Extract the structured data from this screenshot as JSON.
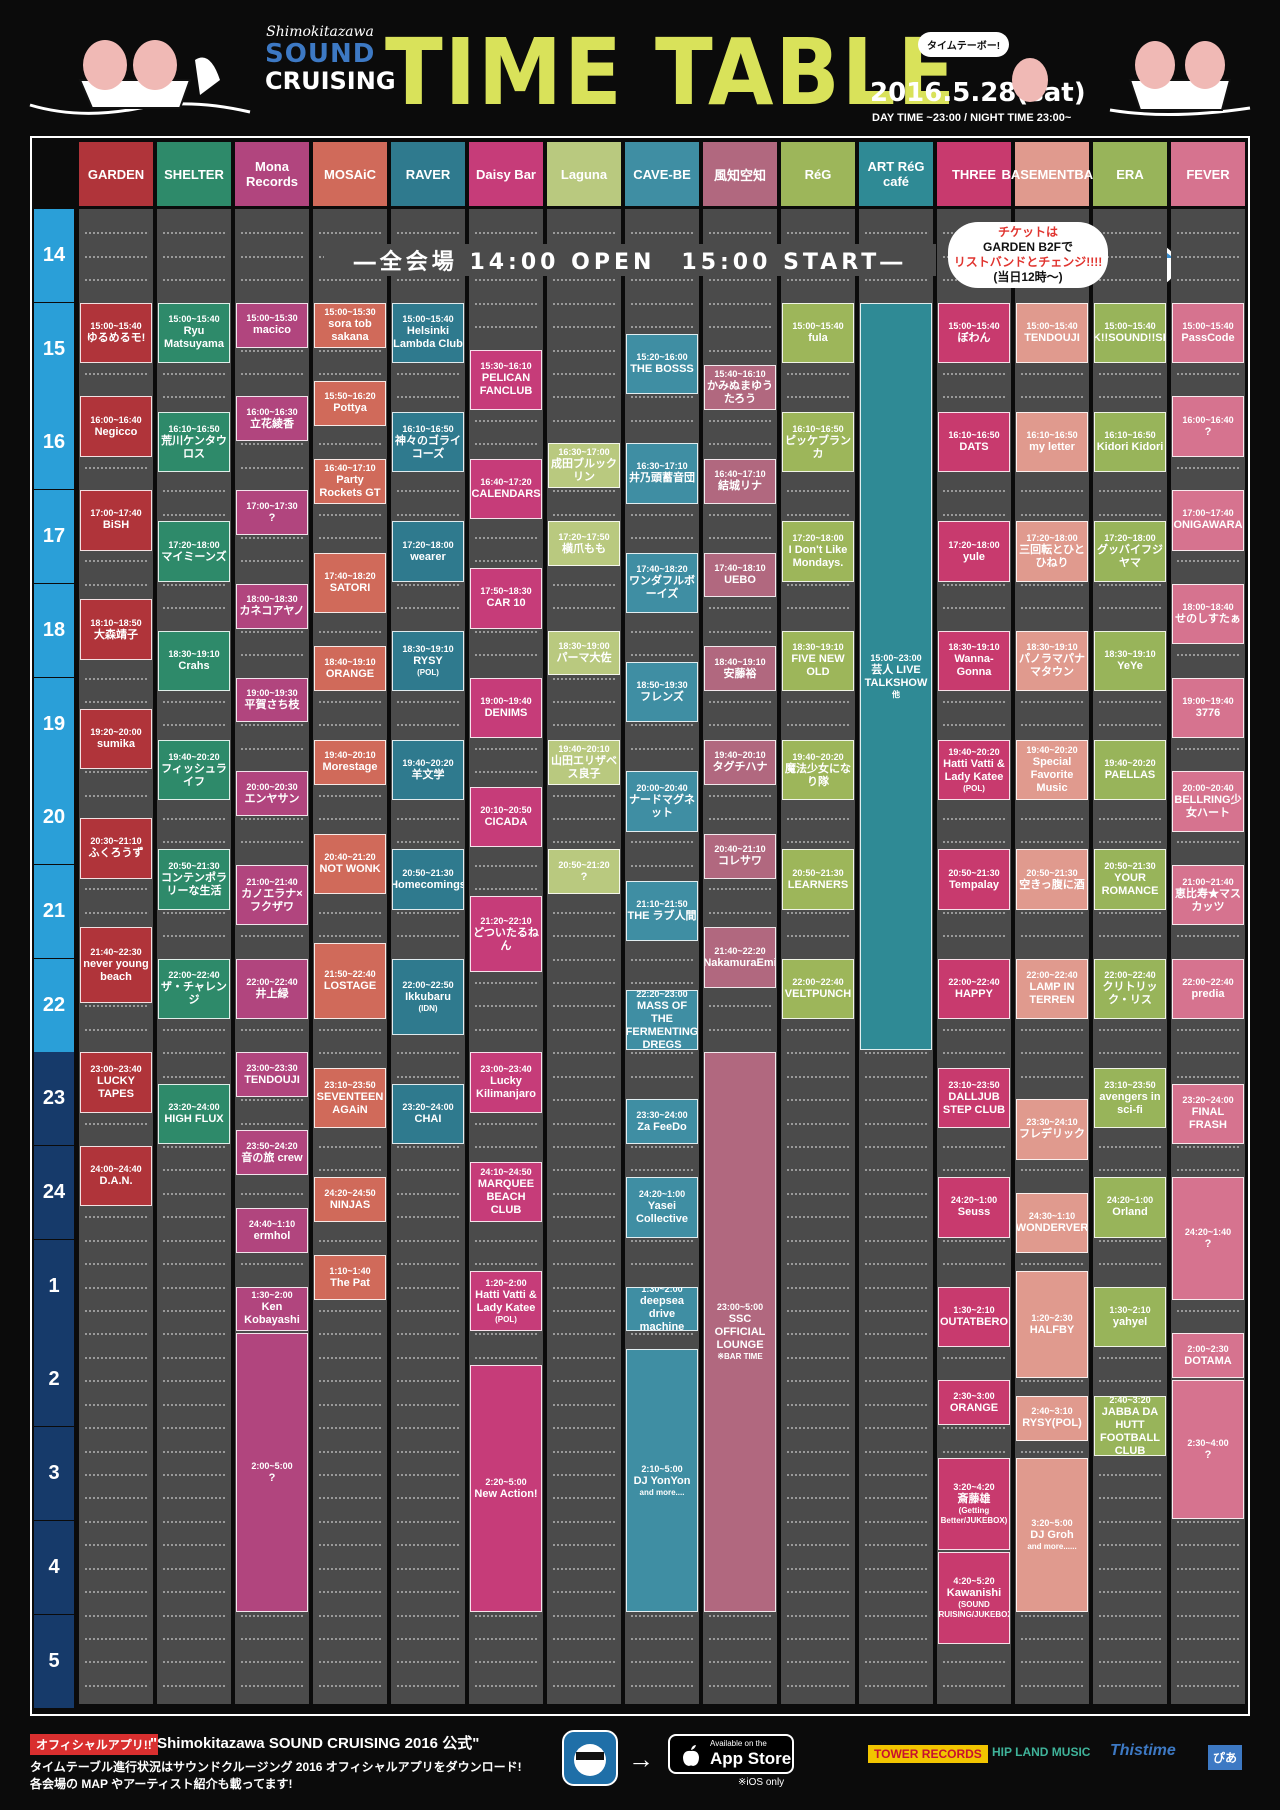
{
  "header": {
    "logo_top": "Shimokitazawa",
    "logo_mid": "SOUND",
    "logo_bot": "CRUISING",
    "title": "TIME TABLE",
    "bubble": "タイムテーボー!",
    "date": "2016.5.28(sat)",
    "hours": "DAY TIME ~23:00 / NIGHT TIME 23:00~"
  },
  "venues": [
    {
      "name": "GARDEN",
      "color": "#b0343a"
    },
    {
      "name": "SHELTER",
      "color": "#2e8a6a"
    },
    {
      "name": "Mona Records",
      "color": "#b1457e"
    },
    {
      "name": "MOSAiC",
      "color": "#d06a5a"
    },
    {
      "name": "RAVER",
      "color": "#2f7a8e"
    },
    {
      "name": "Daisy Bar",
      "color": "#c63c79"
    },
    {
      "name": "Laguna",
      "color": "#b9c97f"
    },
    {
      "name": "CAVE-BE",
      "color": "#3f8ea3"
    },
    {
      "name": "風知空知",
      "color": "#b1687f"
    },
    {
      "name": "RéG",
      "color": "#9db65a"
    },
    {
      "name": "ART RéG café",
      "color": "#2f8a95"
    },
    {
      "name": "THREE",
      "color": "#c83a6e"
    },
    {
      "name": "BASEMENTBAR",
      "color": "#e09a8e"
    },
    {
      "name": "ERA",
      "color": "#98b45a"
    },
    {
      "name": "FEVER",
      "color": "#d6738f"
    }
  ],
  "hours": [
    "14",
    "15",
    "16",
    "17",
    "18",
    "19",
    "20",
    "21",
    "22",
    "23",
    "24",
    "1",
    "2",
    "3",
    "4",
    "5"
  ],
  "open_banner": "―全会場 14:00 OPEN　15:00 START―",
  "ticket": {
    "line1": "チケットは",
    "line2": "GARDEN B2Fで",
    "line3": "リストバンドとチェンジ!!!!",
    "line4": "(当日12時〜)"
  },
  "slots": [
    {
      "v": 0,
      "s": "15:00",
      "e": "15:40",
      "time": "15:00~15:40",
      "name": "ゆるめるモ!"
    },
    {
      "v": 0,
      "s": "16:00",
      "e": "16:40",
      "time": "16:00~16:40",
      "name": "Negicco"
    },
    {
      "v": 0,
      "s": "17:00",
      "e": "17:40",
      "time": "17:00~17:40",
      "name": "BiSH"
    },
    {
      "v": 0,
      "s": "18:10",
      "e": "18:50",
      "time": "18:10~18:50",
      "name": "大森靖子"
    },
    {
      "v": 0,
      "s": "19:20",
      "e": "20:00",
      "time": "19:20~20:00",
      "name": "sumika"
    },
    {
      "v": 0,
      "s": "20:30",
      "e": "21:10",
      "time": "20:30~21:10",
      "name": "ふくろうず"
    },
    {
      "v": 0,
      "s": "21:40",
      "e": "22:30",
      "time": "21:40~22:30",
      "name": "never young beach"
    },
    {
      "v": 0,
      "s": "23:00",
      "e": "23:40",
      "time": "23:00~23:40",
      "name": "LUCKY TAPES"
    },
    {
      "v": 0,
      "s": "24:00",
      "e": "24:40",
      "time": "24:00~24:40",
      "name": "D.A.N."
    },
    {
      "v": 1,
      "s": "15:00",
      "e": "15:40",
      "time": "15:00~15:40",
      "name": "Ryu Matsuyama"
    },
    {
      "v": 1,
      "s": "16:10",
      "e": "16:50",
      "time": "16:10~16:50",
      "name": "荒川ケンタウロス"
    },
    {
      "v": 1,
      "s": "17:20",
      "e": "18:00",
      "time": "17:20~18:00",
      "name": "マイミーンズ"
    },
    {
      "v": 1,
      "s": "18:30",
      "e": "19:10",
      "time": "18:30~19:10",
      "name": "Crahs"
    },
    {
      "v": 1,
      "s": "19:40",
      "e": "20:20",
      "time": "19:40~20:20",
      "name": "フィッシュライフ"
    },
    {
      "v": 1,
      "s": "20:50",
      "e": "21:30",
      "time": "20:50~21:30",
      "name": "コンテンポラリーな生活"
    },
    {
      "v": 1,
      "s": "22:00",
      "e": "22:40",
      "time": "22:00~22:40",
      "name": "ザ・チャレンジ"
    },
    {
      "v": 1,
      "s": "23:20",
      "e": "24:00",
      "time": "23:20~24:00",
      "name": "HIGH FLUX"
    },
    {
      "v": 2,
      "s": "15:00",
      "e": "15:30",
      "time": "15:00~15:30",
      "name": "macico"
    },
    {
      "v": 2,
      "s": "16:00",
      "e": "16:30",
      "time": "16:00~16:30",
      "name": "立花綾香"
    },
    {
      "v": 2,
      "s": "17:00",
      "e": "17:30",
      "time": "17:00~17:30",
      "name": "?"
    },
    {
      "v": 2,
      "s": "18:00",
      "e": "18:30",
      "time": "18:00~18:30",
      "name": "カネコアヤノ"
    },
    {
      "v": 2,
      "s": "19:00",
      "e": "19:30",
      "time": "19:00~19:30",
      "name": "平賀さち枝"
    },
    {
      "v": 2,
      "s": "20:00",
      "e": "20:30",
      "time": "20:00~20:30",
      "name": "エンヤサン"
    },
    {
      "v": 2,
      "s": "21:00",
      "e": "21:40",
      "time": "21:00~21:40",
      "name": "カノエラナ×フクザワ"
    },
    {
      "v": 2,
      "s": "22:00",
      "e": "22:40",
      "time": "22:00~22:40",
      "name": "井上緑"
    },
    {
      "v": 2,
      "s": "23:00",
      "e": "23:30",
      "time": "23:00~23:30",
      "name": "TENDOUJI"
    },
    {
      "v": 2,
      "s": "23:50",
      "e": "24:20",
      "time": "23:50~24:20",
      "name": "音の旅 crew"
    },
    {
      "v": 2,
      "s": "24:40",
      "e": "25:10",
      "time": "24:40~1:10",
      "name": "ermhol"
    },
    {
      "v": 2,
      "s": "25:30",
      "e": "26:00",
      "time": "1:30~2:00",
      "name": "Ken Kobayashi"
    },
    {
      "v": 2,
      "s": "26:00",
      "e": "29:00",
      "time": "2:00~5:00",
      "name": "?"
    },
    {
      "v": 3,
      "s": "15:00",
      "e": "15:30",
      "time": "15:00~15:30",
      "name": "sora tob sakana"
    },
    {
      "v": 3,
      "s": "15:50",
      "e": "16:20",
      "time": "15:50~16:20",
      "name": "Pottya"
    },
    {
      "v": 3,
      "s": "16:40",
      "e": "17:10",
      "time": "16:40~17:10",
      "name": "Party Rockets GT"
    },
    {
      "v": 3,
      "s": "17:40",
      "e": "18:20",
      "time": "17:40~18:20",
      "name": "SATORI"
    },
    {
      "v": 3,
      "s": "18:40",
      "e": "19:10",
      "time": "18:40~19:10",
      "name": "ORANGE"
    },
    {
      "v": 3,
      "s": "19:40",
      "e": "20:10",
      "time": "19:40~20:10",
      "name": "Morestage"
    },
    {
      "v": 3,
      "s": "20:40",
      "e": "21:20",
      "time": "20:40~21:20",
      "name": "NOT WONK"
    },
    {
      "v": 3,
      "s": "21:50",
      "e": "22:40",
      "time": "21:50~22:40",
      "name": "LOSTAGE"
    },
    {
      "v": 3,
      "s": "23:10",
      "e": "23:50",
      "time": "23:10~23:50",
      "name": "SEVENTEEN AGAiN"
    },
    {
      "v": 3,
      "s": "24:20",
      "e": "24:50",
      "time": "24:20~24:50",
      "name": "NINJAS"
    },
    {
      "v": 3,
      "s": "25:10",
      "e": "25:40",
      "time": "1:10~1:40",
      "name": "The Pat"
    },
    {
      "v": 4,
      "s": "15:00",
      "e": "15:40",
      "time": "15:00~15:40",
      "name": "Helsinki Lambda Club"
    },
    {
      "v": 4,
      "s": "16:10",
      "e": "16:50",
      "time": "16:10~16:50",
      "name": "神々のゴライコーズ"
    },
    {
      "v": 4,
      "s": "17:20",
      "e": "18:00",
      "time": "17:20~18:00",
      "name": "wearer"
    },
    {
      "v": 4,
      "s": "18:30",
      "e": "19:10",
      "time": "18:30~19:10",
      "name": "RYSY",
      "sub": "(POL)"
    },
    {
      "v": 4,
      "s": "19:40",
      "e": "20:20",
      "time": "19:40~20:20",
      "name": "羊文学"
    },
    {
      "v": 4,
      "s": "20:50",
      "e": "21:30",
      "time": "20:50~21:30",
      "name": "Homecomings"
    },
    {
      "v": 4,
      "s": "22:00",
      "e": "22:50",
      "time": "22:00~22:50",
      "name": "Ikkubaru",
      "sub": "(IDN)"
    },
    {
      "v": 4,
      "s": "23:20",
      "e": "24:00",
      "time": "23:20~24:00",
      "name": "CHAI"
    },
    {
      "v": 5,
      "s": "15:30",
      "e": "16:10",
      "time": "15:30~16:10",
      "name": "PELICAN FANCLUB"
    },
    {
      "v": 5,
      "s": "16:40",
      "e": "17:20",
      "time": "16:40~17:20",
      "name": "CALENDARS"
    },
    {
      "v": 5,
      "s": "17:50",
      "e": "18:30",
      "time": "17:50~18:30",
      "name": "CAR 10"
    },
    {
      "v": 5,
      "s": "19:00",
      "e": "19:40",
      "time": "19:00~19:40",
      "name": "DENIMS"
    },
    {
      "v": 5,
      "s": "20:10",
      "e": "20:50",
      "time": "20:10~20:50",
      "name": "CICADA"
    },
    {
      "v": 5,
      "s": "21:20",
      "e": "22:10",
      "time": "21:20~22:10",
      "name": "どついたるねん"
    },
    {
      "v": 5,
      "s": "23:00",
      "e": "23:40",
      "time": "23:00~23:40",
      "name": "Lucky Kilimanjaro"
    },
    {
      "v": 5,
      "s": "24:10",
      "e": "24:50",
      "time": "24:10~24:50",
      "name": "MARQUEE BEACH CLUB"
    },
    {
      "v": 5,
      "s": "25:20",
      "e": "26:00",
      "time": "1:20~2:00",
      "name": "Hatti Vatti & Lady Katee",
      "sub": "(POL)"
    },
    {
      "v": 5,
      "s": "26:20",
      "e": "29:00",
      "time": "2:20~5:00",
      "name": "New Action!"
    },
    {
      "v": 6,
      "s": "16:30",
      "e": "17:00",
      "time": "16:30~17:00",
      "name": "成田ブルックリン"
    },
    {
      "v": 6,
      "s": "17:20",
      "e": "17:50",
      "time": "17:20~17:50",
      "name": "横爪もも"
    },
    {
      "v": 6,
      "s": "18:30",
      "e": "19:00",
      "time": "18:30~19:00",
      "name": "パーマ大佐"
    },
    {
      "v": 6,
      "s": "19:40",
      "e": "20:10",
      "time": "19:40~20:10",
      "name": "山田エリザベス良子"
    },
    {
      "v": 6,
      "s": "20:50",
      "e": "21:20",
      "time": "20:50~21:20",
      "name": "?"
    },
    {
      "v": 7,
      "s": "15:20",
      "e": "16:00",
      "time": "15:20~16:00",
      "name": "THE BOSSS"
    },
    {
      "v": 7,
      "s": "16:30",
      "e": "17:10",
      "time": "16:30~17:10",
      "name": "井乃頭蓄音団"
    },
    {
      "v": 7,
      "s": "17:40",
      "e": "18:20",
      "time": "17:40~18:20",
      "name": "ワンダフルボーイズ"
    },
    {
      "v": 7,
      "s": "18:50",
      "e": "19:30",
      "time": "18:50~19:30",
      "name": "フレンズ"
    },
    {
      "v": 7,
      "s": "20:00",
      "e": "20:40",
      "time": "20:00~20:40",
      "name": "ナードマグネット"
    },
    {
      "v": 7,
      "s": "21:10",
      "e": "21:50",
      "time": "21:10~21:50",
      "name": "THE ラブ人間"
    },
    {
      "v": 7,
      "s": "22:20",
      "e": "23:00",
      "time": "22:20~23:00",
      "name": "MASS OF THE FERMENTING DREGS"
    },
    {
      "v": 7,
      "s": "23:30",
      "e": "24:00",
      "time": "23:30~24:00",
      "name": "Za FeeDo"
    },
    {
      "v": 7,
      "s": "24:20",
      "e": "25:00",
      "time": "24:20~1:00",
      "name": "Yasei Collective"
    },
    {
      "v": 7,
      "s": "25:30",
      "e": "26:00",
      "time": "1:30~2:00",
      "name": "deepsea drive machine"
    },
    {
      "v": 7,
      "s": "26:10",
      "e": "29:00",
      "time": "2:10~5:00",
      "name": "DJ YonYon",
      "sub": "and more...."
    },
    {
      "v": 8,
      "s": "15:40",
      "e": "16:10",
      "time": "15:40~16:10",
      "name": "かみぬまゆうたろう"
    },
    {
      "v": 8,
      "s": "16:40",
      "e": "17:10",
      "time": "16:40~17:10",
      "name": "結城リナ"
    },
    {
      "v": 8,
      "s": "17:40",
      "e": "18:10",
      "time": "17:40~18:10",
      "name": "UEBO"
    },
    {
      "v": 8,
      "s": "18:40",
      "e": "19:10",
      "time": "18:40~19:10",
      "name": "安藤裕"
    },
    {
      "v": 8,
      "s": "19:40",
      "e": "20:10",
      "time": "19:40~20:10",
      "name": "タグチハナ"
    },
    {
      "v": 8,
      "s": "20:40",
      "e": "21:10",
      "time": "20:40~21:10",
      "name": "コレサワ"
    },
    {
      "v": 8,
      "s": "21:40",
      "e": "22:20",
      "time": "21:40~22:20",
      "name": "NakamuraEmi"
    },
    {
      "v": 8,
      "s": "23:00",
      "e": "29:00",
      "time": "23:00~5:00",
      "name": "SSC OFFICIAL LOUNGE",
      "sub": "※BAR TIME"
    },
    {
      "v": 9,
      "s": "15:00",
      "e": "15:40",
      "time": "15:00~15:40",
      "name": "fula"
    },
    {
      "v": 9,
      "s": "16:10",
      "e": "16:50",
      "time": "16:10~16:50",
      "name": "ピッケブランカ"
    },
    {
      "v": 9,
      "s": "17:20",
      "e": "18:00",
      "time": "17:20~18:00",
      "name": "I Don't Like Mondays."
    },
    {
      "v": 9,
      "s": "18:30",
      "e": "19:10",
      "time": "18:30~19:10",
      "name": "FIVE NEW OLD"
    },
    {
      "v": 9,
      "s": "19:40",
      "e": "20:20",
      "time": "19:40~20:20",
      "name": "魔法少女になり隊"
    },
    {
      "v": 9,
      "s": "20:50",
      "e": "21:30",
      "time": "20:50~21:30",
      "name": "LEARNERS"
    },
    {
      "v": 9,
      "s": "22:00",
      "e": "22:40",
      "time": "22:00~22:40",
      "name": "VELTPUNCH"
    },
    {
      "v": 10,
      "s": "15:00",
      "e": "23:00",
      "time": "15:00~23:00",
      "name": "芸人 LIVE TALKSHOW",
      "sub": "他"
    },
    {
      "v": 11,
      "s": "15:00",
      "e": "15:40",
      "time": "15:00~15:40",
      "name": "ぼわん"
    },
    {
      "v": 11,
      "s": "16:10",
      "e": "16:50",
      "time": "16:10~16:50",
      "name": "DATS"
    },
    {
      "v": 11,
      "s": "17:20",
      "e": "18:00",
      "time": "17:20~18:00",
      "name": "yule"
    },
    {
      "v": 11,
      "s": "18:30",
      "e": "19:10",
      "time": "18:30~19:10",
      "name": "Wanna-Gonna"
    },
    {
      "v": 11,
      "s": "19:40",
      "e": "20:20",
      "time": "19:40~20:20",
      "name": "Hatti Vatti & Lady Katee",
      "sub": "(POL)"
    },
    {
      "v": 11,
      "s": "20:50",
      "e": "21:30",
      "time": "20:50~21:30",
      "name": "Tempalay"
    },
    {
      "v": 11,
      "s": "22:00",
      "e": "22:40",
      "time": "22:00~22:40",
      "name": "HAPPY"
    },
    {
      "v": 11,
      "s": "23:10",
      "e": "23:50",
      "time": "23:10~23:50",
      "name": "DALLJUB STEP CLUB"
    },
    {
      "v": 11,
      "s": "24:20",
      "e": "25:00",
      "time": "24:20~1:00",
      "name": "Seuss"
    },
    {
      "v": 11,
      "s": "25:30",
      "e": "26:10",
      "time": "1:30~2:10",
      "name": "OUTATBERO"
    },
    {
      "v": 11,
      "s": "26:30",
      "e": "27:00",
      "time": "2:30~3:00",
      "name": "ORANGE"
    },
    {
      "v": 11,
      "s": "27:20",
      "e": "28:20",
      "time": "3:20~4:20",
      "name": "斎藤雄",
      "sub": "(Getting Better/JUKEBOX)"
    },
    {
      "v": 11,
      "s": "28:20",
      "e": "29:20",
      "time": "4:20~5:20",
      "name": "Kawanishi",
      "sub": "(SOUND CRUISING/JUKEBOX)"
    },
    {
      "v": 12,
      "s": "15:00",
      "e": "15:40",
      "time": "15:00~15:40",
      "name": "TENDOUJI"
    },
    {
      "v": 12,
      "s": "16:10",
      "e": "16:50",
      "time": "16:10~16:50",
      "name": "my letter"
    },
    {
      "v": 12,
      "s": "17:20",
      "e": "18:00",
      "time": "17:20~18:00",
      "name": "三回転とひとひねり"
    },
    {
      "v": 12,
      "s": "18:30",
      "e": "19:10",
      "time": "18:30~19:10",
      "name": "パノラマパナマタウン"
    },
    {
      "v": 12,
      "s": "19:40",
      "e": "20:20",
      "time": "19:40~20:20",
      "name": "Special Favorite Music"
    },
    {
      "v": 12,
      "s": "20:50",
      "e": "21:30",
      "time": "20:50~21:30",
      "name": "空きっ腹に酒"
    },
    {
      "v": 12,
      "s": "22:00",
      "e": "22:40",
      "time": "22:00~22:40",
      "name": "LAMP IN TERREN"
    },
    {
      "v": 12,
      "s": "23:30",
      "e": "24:10",
      "time": "23:30~24:10",
      "name": "フレデリック"
    },
    {
      "v": 12,
      "s": "24:30",
      "e": "25:10",
      "time": "24:30~1:10",
      "name": "WONDERVER"
    },
    {
      "v": 12,
      "s": "25:20",
      "e": "26:30",
      "time": "1:20~2:30",
      "name": "HALFBY"
    },
    {
      "v": 12,
      "s": "26:40",
      "e": "27:10",
      "time": "2:40~3:10",
      "name": "RYSY(POL)"
    },
    {
      "v": 12,
      "s": "27:20",
      "e": "29:00",
      "time": "3:20~5:00",
      "name": "DJ Groh",
      "sub": "and more......"
    },
    {
      "v": 13,
      "s": "15:00",
      "e": "15:40",
      "time": "15:00~15:40",
      "name": "SPARK!!SOUND!!SHOW!!"
    },
    {
      "v": 13,
      "s": "16:10",
      "e": "16:50",
      "time": "16:10~16:50",
      "name": "Kidori Kidori"
    },
    {
      "v": 13,
      "s": "17:20",
      "e": "18:00",
      "time": "17:20~18:00",
      "name": "グッバイフジヤマ"
    },
    {
      "v": 13,
      "s": "18:30",
      "e": "19:10",
      "time": "18:30~19:10",
      "name": "YeYe"
    },
    {
      "v": 13,
      "s": "19:40",
      "e": "20:20",
      "time": "19:40~20:20",
      "name": "PAELLAS"
    },
    {
      "v": 13,
      "s": "20:50",
      "e": "21:30",
      "time": "20:50~21:30",
      "name": "YOUR ROMANCE"
    },
    {
      "v": 13,
      "s": "22:00",
      "e": "22:40",
      "time": "22:00~22:40",
      "name": "クリトリック・リス"
    },
    {
      "v": 13,
      "s": "23:10",
      "e": "23:50",
      "time": "23:10~23:50",
      "name": "avengers in sci-fi"
    },
    {
      "v": 13,
      "s": "24:20",
      "e": "25:00",
      "time": "24:20~1:00",
      "name": "Orland"
    },
    {
      "v": 13,
      "s": "25:30",
      "e": "26:10",
      "time": "1:30~2:10",
      "name": "yahyel"
    },
    {
      "v": 13,
      "s": "26:40",
      "e": "27:20",
      "time": "2:40~3:20",
      "name": "JABBA DA HUTT FOOTBALL CLUB"
    },
    {
      "v": 14,
      "s": "15:00",
      "e": "15:40",
      "time": "15:00~15:40",
      "name": "PassCode"
    },
    {
      "v": 14,
      "s": "16:00",
      "e": "16:40",
      "time": "16:00~16:40",
      "name": "?"
    },
    {
      "v": 14,
      "s": "17:00",
      "e": "17:40",
      "time": "17:00~17:40",
      "name": "ONIGAWARA"
    },
    {
      "v": 14,
      "s": "18:00",
      "e": "18:40",
      "time": "18:00~18:40",
      "name": "せのしすたぁ"
    },
    {
      "v": 14,
      "s": "19:00",
      "e": "19:40",
      "time": "19:00~19:40",
      "name": "3776"
    },
    {
      "v": 14,
      "s": "20:00",
      "e": "20:40",
      "time": "20:00~20:40",
      "name": "BELLRING少女ハート"
    },
    {
      "v": 14,
      "s": "21:00",
      "e": "21:40",
      "time": "21:00~21:40",
      "name": "恵比寿★マスカッツ"
    },
    {
      "v": 14,
      "s": "22:00",
      "e": "22:40",
      "time": "22:00~22:40",
      "name": "predia"
    },
    {
      "v": 14,
      "s": "23:20",
      "e": "24:00",
      "time": "23:20~24:00",
      "name": "FINAL FRASH"
    },
    {
      "v": 14,
      "s": "24:20",
      "e": "25:40",
      "time": "24:20~1:40",
      "name": "?"
    },
    {
      "v": 14,
      "s": "26:00",
      "e": "26:30",
      "time": "2:00~2:30",
      "name": "DOTAMA"
    },
    {
      "v": 14,
      "s": "26:30",
      "e": "28:00",
      "time": "2:30~4:00",
      "name": "?"
    }
  ],
  "footer": {
    "badge": "オフィシャルアプリ!!",
    "app_title": "\"Shimokitazawa SOUND CRUISING 2016 公式\"",
    "line1": "タイムテーブル進行状況はサウンドクルージング 2016 オフィシャルアプリをダウンロード!",
    "line2": "各会場の MAP やアーティスト紹介も載ってます!",
    "appstore_small": "Available on the",
    "appstore_big": "App Store",
    "ios_only": "※iOS only",
    "sponsors": [
      "TOWER RECORDS",
      "HIP LAND MUSIC",
      "Thistime",
      "ぴあ"
    ]
  },
  "colors": {
    "day_hour": "#2a9fd8",
    "night_hour": "#163a6a",
    "lane_bg": "#4b4b4b",
    "title": "#d9e25a"
  }
}
